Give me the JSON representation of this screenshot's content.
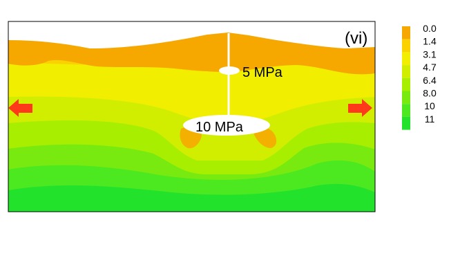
{
  "figure": {
    "panel_label": "(vi)",
    "annotations": {
      "upper_crack": "5 MPa",
      "lower_crack": "10 MPa"
    },
    "arrow_color": "#ff3a1a"
  },
  "legend": {
    "items": [
      {
        "label": "0.0",
        "color": "#f6a800"
      },
      {
        "label": "1.4",
        "color": "#fad200"
      },
      {
        "label": "3.1",
        "color": "#f2ee00"
      },
      {
        "label": "4.7",
        "color": "#d2ee00"
      },
      {
        "label": "6.4",
        "color": "#a8ee00"
      },
      {
        "label": "8.0",
        "color": "#78ea10"
      },
      {
        "label": "10",
        "color": "#4ce820"
      },
      {
        "label": "11",
        "color": "#22e22c"
      }
    ]
  }
}
